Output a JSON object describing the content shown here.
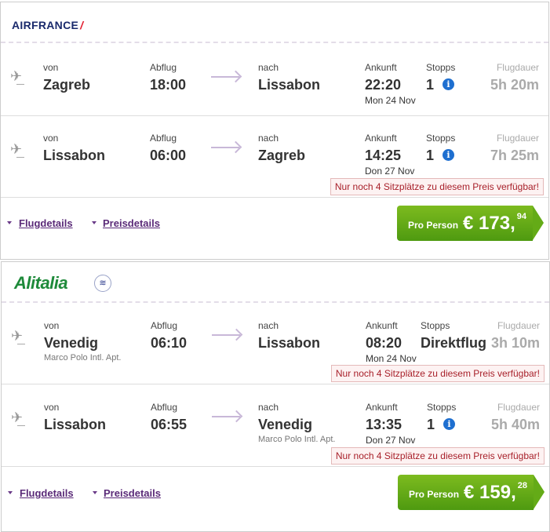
{
  "offers": [
    {
      "airline": "AIRFRANCE",
      "flights": [
        {
          "from_label": "von",
          "from": "Zagreb",
          "from_sub": "",
          "dep_label": "Abflug",
          "dep": "18:00",
          "to_label": "nach",
          "to": "Lissabon",
          "to_sub": "",
          "arr_label": "Ankunft",
          "arr": "22:20",
          "arr_date": "Mon 24 Nov",
          "stops_label": "Stopps",
          "stops": "1",
          "dur_label": "Flugdauer",
          "dur": "5h 20m",
          "warning": ""
        },
        {
          "from_label": "von",
          "from": "Lissabon",
          "from_sub": "",
          "dep_label": "Abflug",
          "dep": "06:00",
          "to_label": "nach",
          "to": "Zagreb",
          "to_sub": "",
          "arr_label": "Ankunft",
          "arr": "14:25",
          "arr_date": "Don 27 Nov",
          "stops_label": "Stopps",
          "stops": "1",
          "dur_label": "Flugdauer",
          "dur": "7h 25m",
          "warning": "Nur noch 4 Sitzplätze zu diesem Preis verfügbar!"
        }
      ],
      "flight_details": "Flugdetails",
      "price_details": "Preisdetails",
      "per_person": "Pro Person",
      "price": "€ 173,",
      "cents": "94"
    },
    {
      "airline": "Alitalia",
      "flights": [
        {
          "from_label": "von",
          "from": "Venedig",
          "from_sub": "Marco Polo Intl. Apt.",
          "dep_label": "Abflug",
          "dep": "06:10",
          "to_label": "nach",
          "to": "Lissabon",
          "to_sub": "",
          "arr_label": "Ankunft",
          "arr": "08:20",
          "arr_date": "Mon 24 Nov",
          "stops_label": "Stopps",
          "stops": "Direktflug",
          "dur_label": "Flugdauer",
          "dur": "3h 10m",
          "warning": "Nur noch 4 Sitzplätze zu diesem Preis verfügbar!"
        },
        {
          "from_label": "von",
          "from": "Lissabon",
          "from_sub": "",
          "dep_label": "Abflug",
          "dep": "06:55",
          "to_label": "nach",
          "to": "Venedig",
          "to_sub": "Marco Polo Intl. Apt.",
          "arr_label": "Ankunft",
          "arr": "13:35",
          "arr_date": "Don 27 Nov",
          "stops_label": "Stopps",
          "stops": "1",
          "dur_label": "Flugdauer",
          "dur": "5h 40m",
          "warning": "Nur noch 4 Sitzplätze zu diesem Preis verfügbar!"
        }
      ],
      "flight_details": "Flugdetails",
      "price_details": "Preisdetails",
      "per_person": "Pro Person",
      "price": "€ 159,",
      "cents": "28"
    }
  ],
  "colors": {
    "price_green": "#5ea515",
    "link_purple": "#5a2a78",
    "warning_red": "#a8202a",
    "info_blue": "#1e6fd0"
  }
}
